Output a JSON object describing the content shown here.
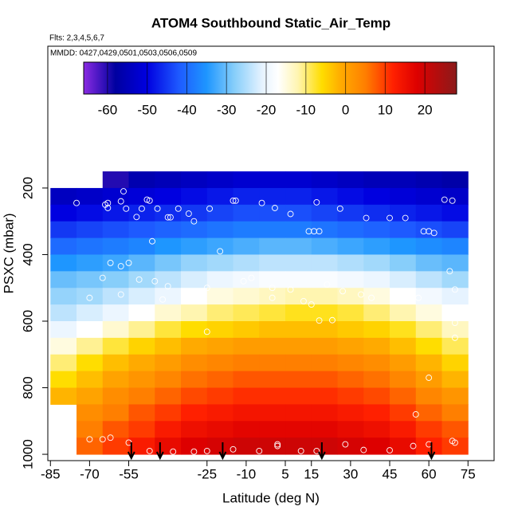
{
  "chart_data": {
    "type": "heatmap",
    "title": "ATOM4 Southbound Static_Air_Temp",
    "subtitle": "Flts: 2,3,4,5,6,7",
    "annotation": "MMDD: 0427,0429,0501,0503,0506,0509",
    "xlabel": "Latitude (deg N)",
    "ylabel": "PSXC (mbar)",
    "xlim": [
      -86,
      85
    ],
    "xticks": [
      -85,
      -70,
      -55,
      -25,
      -10,
      5,
      15,
      30,
      45,
      60,
      75
    ],
    "ylim": [
      1019,
      -226
    ],
    "yticks": [
      200,
      400,
      600,
      800,
      1000
    ],
    "x": [
      -80,
      -70,
      -60,
      -50,
      -40,
      -30,
      -20,
      -10,
      0,
      10,
      20,
      30,
      40,
      50,
      60,
      70
    ],
    "y": [
      175,
      225,
      275,
      325,
      375,
      425,
      475,
      525,
      575,
      625,
      675,
      725,
      775,
      825,
      875,
      925,
      975
    ],
    "cell_width": 10,
    "cell_height": 50,
    "values": [
      [
        null,
        null,
        -60,
        -56,
        -55,
        -54,
        -53,
        -52,
        -52,
        -52,
        -53,
        -54,
        -55,
        -55,
        -56,
        -57
      ],
      [
        -54,
        -53,
        -52,
        -51,
        -50,
        -49,
        -48,
        -47,
        -47,
        -47,
        -48,
        -49,
        -50,
        -51,
        -52,
        -53
      ],
      [
        -50,
        -49,
        -48,
        -47,
        -46,
        -45,
        -44,
        -43,
        -43,
        -43,
        -44,
        -45,
        -46,
        -47,
        -48,
        -49
      ],
      [
        -45,
        -44,
        -43,
        -42,
        -41,
        -40,
        -39,
        -38,
        -38,
        -38,
        -39,
        -40,
        -41,
        -42,
        -43,
        -44
      ],
      [
        -40,
        -39,
        -38,
        -37,
        -35,
        -34,
        -33,
        -32,
        -31,
        -31,
        -32,
        -33,
        -34,
        -35,
        -36,
        -37
      ],
      [
        -35,
        -34,
        -33,
        -31,
        -29,
        -27,
        -26,
        -25,
        -24,
        -24,
        -24,
        -25,
        -26,
        -28,
        -30,
        -31
      ],
      [
        -30,
        -29,
        -28,
        -26,
        -24,
        -22,
        -20,
        -19,
        -18,
        -18,
        -18,
        -19,
        -20,
        -22,
        -24,
        -26
      ],
      [
        -27,
        -26,
        -24,
        -22,
        -20,
        -17,
        -15,
        -14,
        -13,
        -12,
        -12,
        -13,
        -15,
        -17,
        -19,
        -21
      ],
      [
        -24,
        -22,
        -20,
        -17,
        -14,
        -12,
        -10,
        -9,
        -8,
        -7,
        -7,
        -8,
        -10,
        -12,
        -15,
        -17
      ],
      [
        -20,
        -17,
        -14,
        -11,
        -8,
        -6,
        -5,
        -4,
        -3,
        -3,
        -3,
        -4,
        -5,
        -7,
        -10,
        -13
      ],
      [
        -15,
        -11,
        -8,
        -5,
        -3,
        -1,
        0,
        1,
        1,
        1,
        1,
        0,
        -1,
        -3,
        -6,
        -9
      ],
      [
        -10,
        -6,
        -3,
        -1,
        1,
        3,
        4,
        5,
        5,
        5,
        5,
        4,
        3,
        1,
        -2,
        -5
      ],
      [
        -6,
        -3,
        0,
        2,
        4,
        6,
        7,
        8,
        8,
        8,
        8,
        7,
        6,
        4,
        1,
        -2
      ],
      [
        -2,
        0,
        3,
        5,
        7,
        9,
        10,
        11,
        11,
        11,
        11,
        10,
        9,
        7,
        4,
        2
      ],
      [
        null,
        3,
        5,
        8,
        10,
        12,
        13,
        14,
        14,
        14,
        14,
        13,
        12,
        10,
        7,
        5
      ],
      [
        null,
        5,
        8,
        10,
        13,
        15,
        16,
        17,
        17,
        17,
        17,
        16,
        15,
        13,
        10,
        8
      ],
      [
        null,
        7,
        10,
        13,
        16,
        18,
        19,
        20,
        20,
        20,
        20,
        19,
        18,
        16,
        12,
        10
      ]
    ],
    "colorbar_lim": [
      -66,
      28
    ],
    "colorbar_ticks": [
      -60,
      -50,
      -40,
      -30,
      -20,
      -10,
      0,
      10,
      20
    ],
    "colorscale": [
      [
        -66,
        "#8a2be2"
      ],
      [
        -58,
        "#0000a0"
      ],
      [
        -50,
        "#0000e0"
      ],
      [
        -42,
        "#1e5aff"
      ],
      [
        -35,
        "#1e96ff"
      ],
      [
        -28,
        "#87cefa"
      ],
      [
        -21,
        "#e6f3ff"
      ],
      [
        -17,
        "#ffffff"
      ],
      [
        -12,
        "#fff5b0"
      ],
      [
        -6,
        "#ffdd00"
      ],
      [
        -1,
        "#ffaa00"
      ],
      [
        5,
        "#ff7f00"
      ],
      [
        12,
        "#ff2000"
      ],
      [
        18,
        "#dd0000"
      ],
      [
        28,
        "#8b1a1a"
      ]
    ],
    "points": {
      "x": [
        -58,
        -57,
        -48,
        -47,
        -15,
        -14,
        -4,
        17,
        66,
        69,
        -75,
        -63,
        -64,
        -63,
        -56,
        -50,
        -44,
        -36,
        -24,
        -39,
        -40,
        -32,
        1,
        7,
        26,
        36,
        45,
        51,
        -52,
        -30,
        14,
        16,
        18,
        58,
        60,
        62,
        -46,
        -20,
        -62,
        -58,
        -55,
        -65,
        -51,
        -45,
        -11,
        -8,
        0,
        7,
        -40,
        -25,
        21,
        27,
        34,
        38,
        48,
        56,
        70,
        -70,
        -58,
        -42,
        0,
        12,
        15,
        -53,
        -25,
        23,
        18,
        -70,
        -65,
        -62,
        -55,
        -47,
        -38,
        -30,
        -25,
        -15,
        -5,
        2,
        2,
        11,
        17,
        28,
        35,
        45,
        54,
        60,
        69,
        70,
        55,
        60,
        70,
        70,
        68
      ],
      "y": [
        240,
        210,
        235,
        238,
        238,
        238,
        245,
        243,
        235,
        238,
        245,
        245,
        250,
        260,
        262,
        262,
        262,
        262,
        262,
        288,
        288,
        277,
        260,
        278,
        262,
        290,
        290,
        290,
        287,
        300,
        330,
        330,
        330,
        330,
        330,
        335,
        360,
        390,
        425,
        435,
        425,
        470,
        475,
        480,
        480,
        470,
        500,
        505,
        495,
        500,
        490,
        510,
        520,
        530,
        530,
        530,
        505,
        530,
        520,
        535,
        530,
        540,
        550,
        560,
        632,
        597,
        598,
        955,
        955,
        950,
        965,
        990,
        992,
        992,
        990,
        985,
        990,
        970,
        975,
        990,
        990,
        970,
        987,
        988,
        975,
        970,
        960,
        965,
        880,
        770,
        650,
        605,
        450
      ]
    },
    "arrows_x": [
      -54,
      -43,
      -19,
      19,
      61
    ]
  }
}
